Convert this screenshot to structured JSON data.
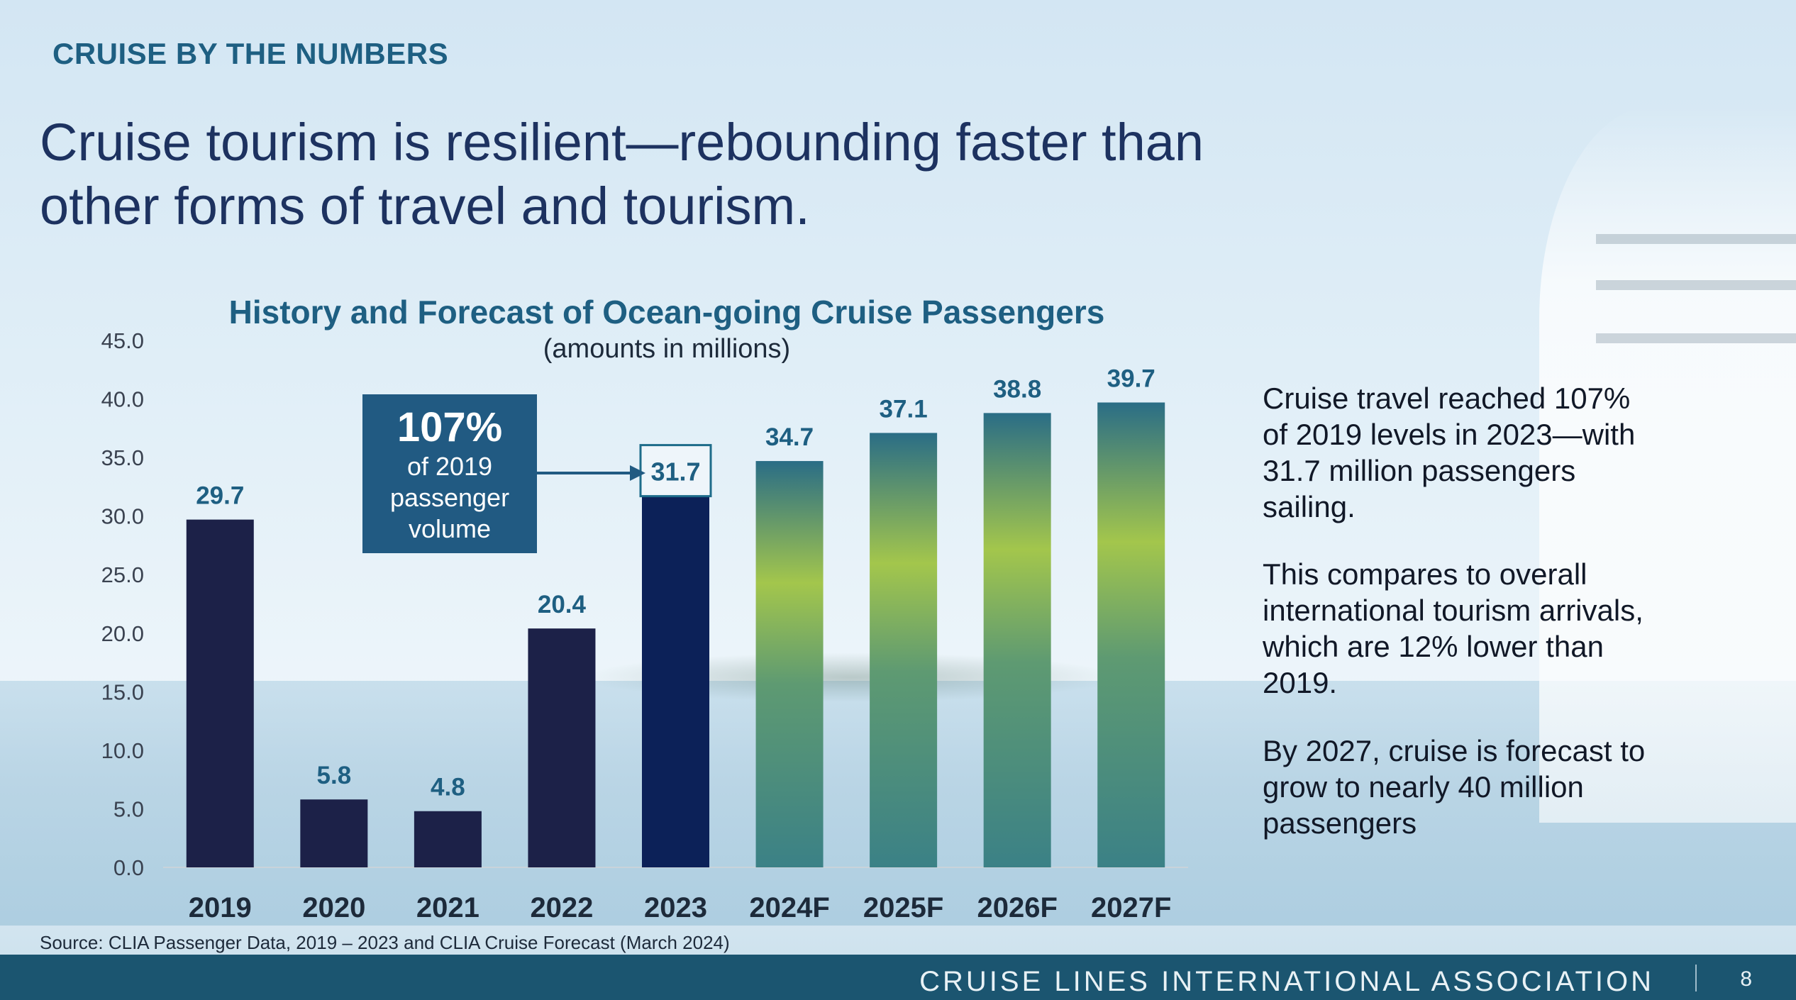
{
  "header": {
    "kicker": "CRUISE BY THE NUMBERS",
    "headline_line1": "Cruise tourism is resilient—rebounding faster than",
    "headline_line2": "other forms of travel and tourism."
  },
  "chart_data": {
    "type": "bar",
    "title": "History and Forecast of Ocean-going Cruise Passengers",
    "subtitle": "(amounts in millions)",
    "categories": [
      "2019",
      "2020",
      "2021",
      "2022",
      "2023",
      "2024F",
      "2025F",
      "2026F",
      "2027F"
    ],
    "values": [
      29.7,
      5.8,
      4.8,
      20.4,
      31.7,
      34.7,
      37.1,
      38.8,
      39.7
    ],
    "value_labels": [
      "29.7",
      "5.8",
      "4.8",
      "20.4",
      "31.7",
      "34.7",
      "37.1",
      "38.8",
      "39.7"
    ],
    "bar_kind": [
      "history",
      "history",
      "history",
      "history",
      "highlight",
      "forecast",
      "forecast",
      "forecast",
      "forecast"
    ],
    "ylim": [
      0,
      45
    ],
    "yticks": [
      "0.0",
      "5.0",
      "10.0",
      "15.0",
      "20.0",
      "25.0",
      "30.0",
      "35.0",
      "40.0",
      "45.0"
    ],
    "xlabel": "",
    "ylabel": "",
    "grid": false,
    "colors": {
      "history": "#1c2148",
      "highlight": "#0c2158",
      "forecast_top": "#2a6d86",
      "forecast_mid": "#a3c64c",
      "forecast_bottom": "#3b8186",
      "label": "#1e5f82"
    }
  },
  "callout": {
    "big": "107%",
    "line1": "of 2019",
    "line2": "passenger",
    "line3": "volume"
  },
  "side_text": {
    "p1": "Cruise travel reached 107% of 2019 levels in 2023—with 31.7 million passengers sailing.",
    "p2": "This compares to overall international tourism arrivals, which are 12% lower than 2019.",
    "p3": "By 2027, cruise is forecast to grow to nearly 40 million passengers"
  },
  "source": "Source: CLIA Passenger Data, 2019 – 2023 and CLIA Cruise Forecast  (March 2024)",
  "footer": {
    "org": "CRUISE LINES INTERNATIONAL ASSOCIATION",
    "page": "8"
  }
}
